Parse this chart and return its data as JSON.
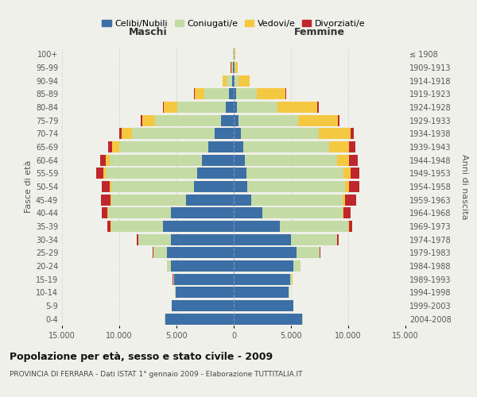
{
  "age_groups": [
    "0-4",
    "5-9",
    "10-14",
    "15-19",
    "20-24",
    "25-29",
    "30-34",
    "35-39",
    "40-44",
    "45-49",
    "50-54",
    "55-59",
    "60-64",
    "65-69",
    "70-74",
    "75-79",
    "80-84",
    "85-89",
    "90-94",
    "95-99",
    "100+"
  ],
  "birth_years": [
    "2004-2008",
    "1999-2003",
    "1994-1998",
    "1989-1993",
    "1984-1988",
    "1979-1983",
    "1974-1978",
    "1969-1973",
    "1964-1968",
    "1959-1963",
    "1954-1958",
    "1949-1953",
    "1944-1948",
    "1939-1943",
    "1934-1938",
    "1929-1933",
    "1924-1928",
    "1919-1923",
    "1914-1918",
    "1909-1913",
    "≤ 1908"
  ],
  "colors": {
    "celibe": "#3c6fa5",
    "coniugato": "#c5dba5",
    "vedovo": "#f5c842",
    "divorziato": "#c0272d"
  },
  "maschi": {
    "celibe": [
      6000,
      5400,
      5100,
      5200,
      5500,
      5800,
      5500,
      6200,
      5500,
      4200,
      3500,
      3200,
      2800,
      2200,
      1700,
      1100,
      700,
      400,
      150,
      60,
      30
    ],
    "coniugato": [
      10,
      20,
      50,
      100,
      300,
      1200,
      2800,
      4500,
      5500,
      6500,
      7200,
      8000,
      8000,
      7800,
      7200,
      5800,
      4200,
      2200,
      500,
      100,
      40
    ],
    "vedovo": [
      5,
      5,
      5,
      5,
      5,
      10,
      20,
      30,
      50,
      80,
      100,
      200,
      400,
      600,
      900,
      1100,
      1200,
      800,
      300,
      80,
      20
    ],
    "divorziato": [
      5,
      5,
      5,
      10,
      20,
      50,
      150,
      300,
      500,
      800,
      700,
      600,
      500,
      350,
      200,
      100,
      80,
      50,
      20,
      10,
      5
    ]
  },
  "femmine": {
    "nubile": [
      6000,
      5200,
      4800,
      4900,
      5200,
      5500,
      5000,
      4000,
      2500,
      1500,
      1200,
      1100,
      1000,
      800,
      600,
      400,
      300,
      200,
      100,
      50,
      30
    ],
    "coniugata": [
      10,
      20,
      50,
      200,
      600,
      2000,
      4000,
      6000,
      7000,
      8000,
      8500,
      8500,
      8000,
      7500,
      6800,
      5200,
      3500,
      1800,
      300,
      70,
      30
    ],
    "vedova": [
      5,
      5,
      5,
      5,
      5,
      10,
      30,
      50,
      100,
      200,
      350,
      600,
      1100,
      1800,
      2800,
      3500,
      3500,
      2500,
      1000,
      250,
      60
    ],
    "divorziata": [
      5,
      5,
      5,
      10,
      20,
      50,
      150,
      300,
      600,
      1000,
      900,
      800,
      700,
      500,
      300,
      150,
      100,
      50,
      20,
      10,
      5
    ]
  },
  "title_main": "Popolazione per età, sesso e stato civile - 2009",
  "title_sub": "PROVINCIA DI FERRARA - Dati ISTAT 1° gennaio 2009 - Elaborazione TUTTITALIA.IT",
  "xlabel_left": "Maschi",
  "xlabel_right": "Femmine",
  "ylabel_left": "Fasce di età",
  "ylabel_right": "Anni di nascita",
  "xlim": 15000,
  "xtick_labels": [
    "15.000",
    "10.000",
    "5.000",
    "0",
    "5.000",
    "10.000",
    "15.000"
  ],
  "legend_labels": [
    "Celibi/Nubili",
    "Coniugati/e",
    "Vedovi/e",
    "Divorziati/e"
  ],
  "background_color": "#f0f0eb",
  "grid_color": "#cccccc"
}
